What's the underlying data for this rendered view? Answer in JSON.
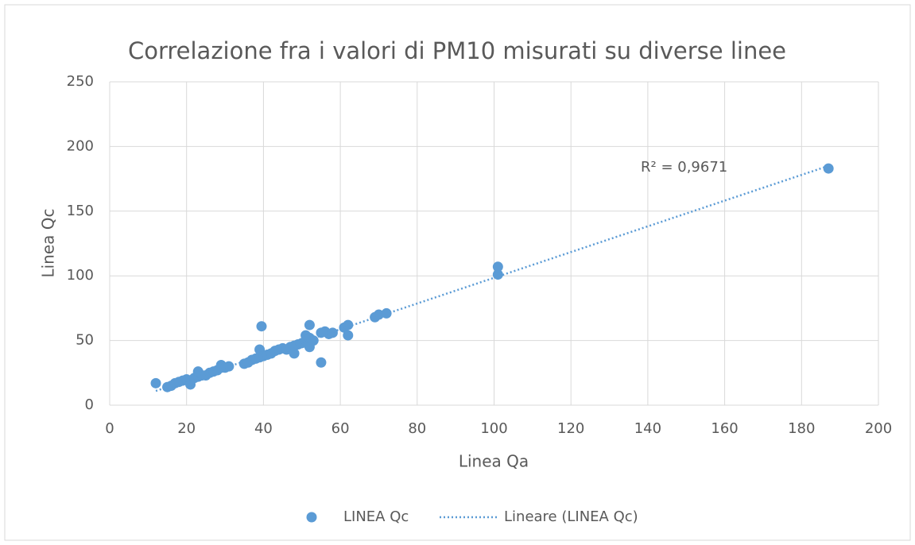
{
  "chart_data": {
    "type": "scatter",
    "title": "Correlazione fra i valori di PM10 misurati su diverse linee",
    "x_label": "Linea Qa",
    "y_label": "Linea Qc",
    "xlim": [
      0,
      200
    ],
    "xticks": [
      0,
      20,
      40,
      60,
      80,
      100,
      120,
      140,
      160,
      180,
      200
    ],
    "ylim": [
      0,
      250
    ],
    "yticks": [
      0,
      50,
      100,
      150,
      200,
      250
    ],
    "grid": true,
    "legend": "bottom",
    "series": [
      {
        "name": "LINEA Qc",
        "color": "#5b9bd5",
        "x": [
          12,
          15,
          16,
          17,
          18,
          19,
          20,
          21,
          21,
          22,
          23,
          23,
          24,
          25,
          26,
          27,
          28,
          29,
          29,
          30,
          31,
          35,
          36,
          37,
          38,
          39,
          39,
          39.5,
          40,
          41,
          42,
          43,
          44,
          45,
          46,
          47,
          48,
          48,
          49,
          50,
          51,
          51,
          52,
          52,
          52,
          53,
          55,
          55,
          56,
          57,
          58,
          61,
          62,
          62,
          69,
          70,
          72,
          101,
          101,
          187
        ],
        "values": [
          17,
          14,
          15,
          17,
          18,
          19,
          20,
          16,
          19,
          21,
          22,
          26,
          23,
          23,
          25,
          26,
          27,
          29,
          31,
          29,
          30,
          32,
          33,
          35,
          36,
          37,
          43,
          61,
          38,
          39,
          40,
          42,
          43,
          44,
          43,
          45,
          40,
          46,
          47,
          48,
          50,
          54,
          45,
          62,
          52,
          50,
          33,
          56,
          57,
          55,
          56,
          60,
          62,
          54,
          68,
          70,
          71,
          101,
          107,
          183
        ]
      }
    ],
    "trendline": {
      "name": "Lineare (LINEA Qc)",
      "color": "#5b9bd5",
      "x": [
        12,
        187
      ],
      "values": [
        11,
        185
      ],
      "label": "R² = 0,9671"
    }
  }
}
